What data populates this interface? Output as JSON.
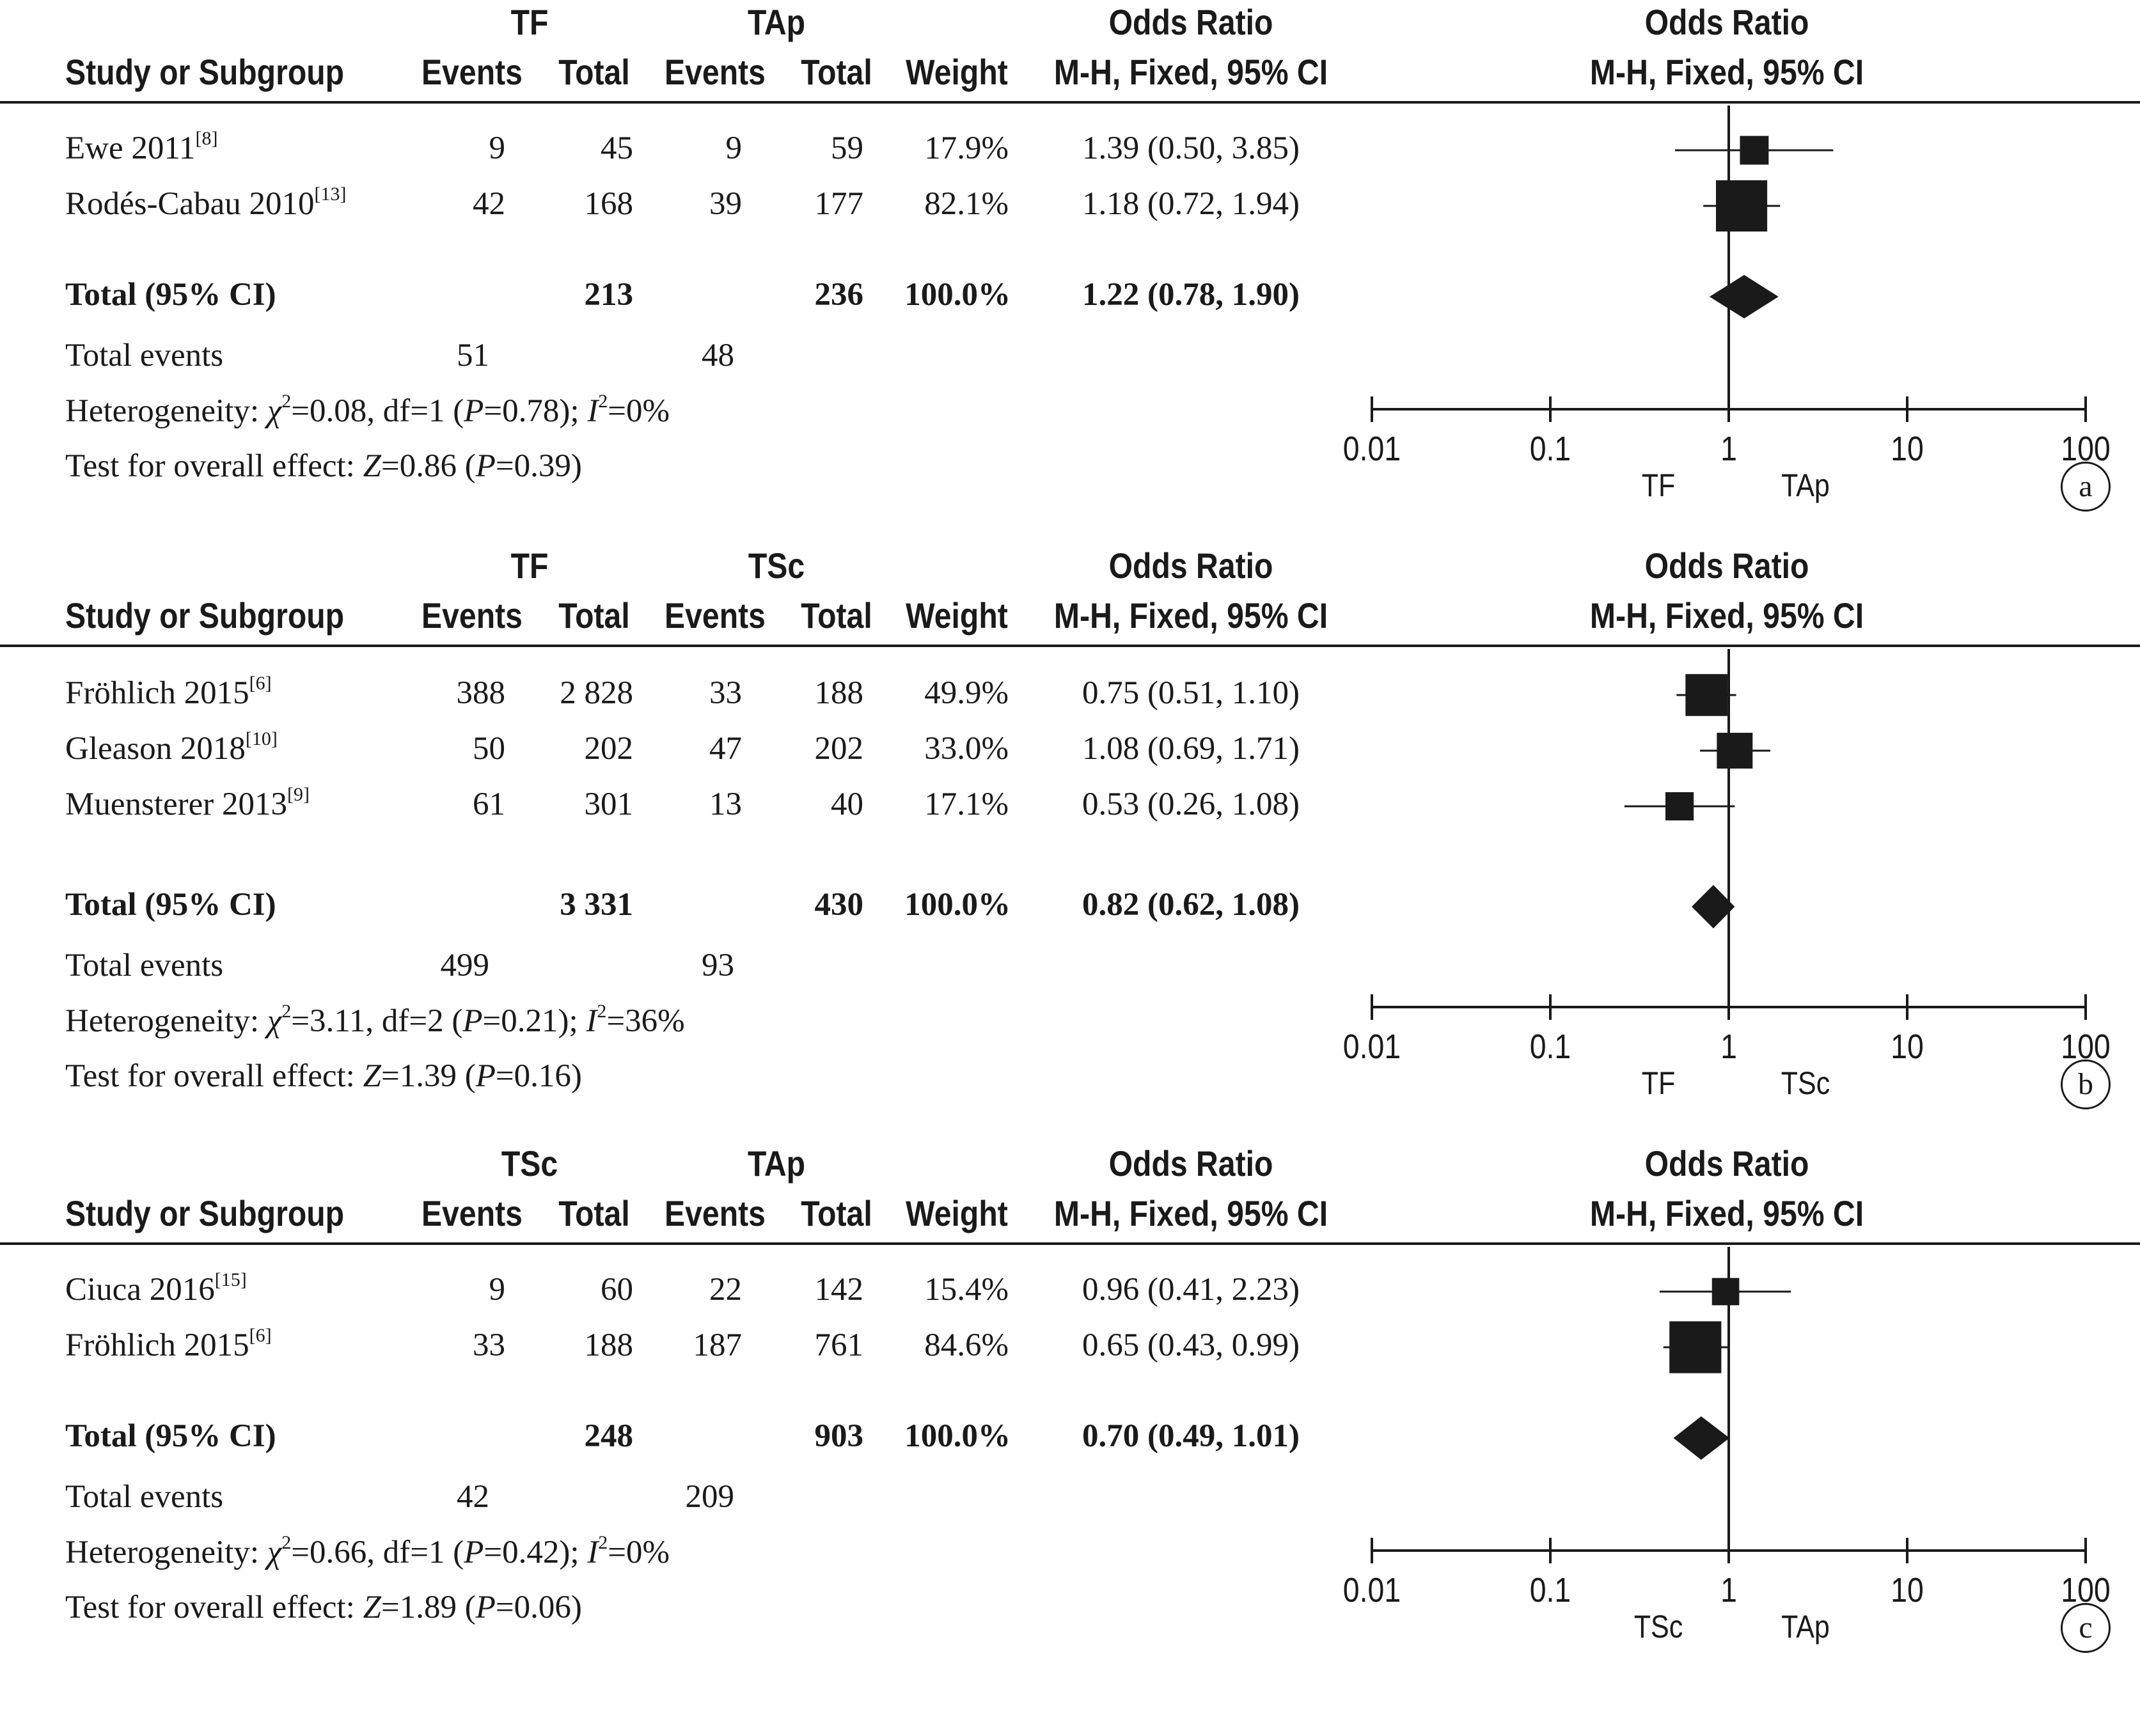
{
  "chart_data": [
    {
      "type": "forest",
      "columns": {
        "study": "Study or Subgroup",
        "group1": "TF",
        "group2": "TAp",
        "events": "Events",
        "total": "Total",
        "weight": "Weight",
        "or": "Odds Ratio",
        "method": "M-H, Fixed, 95% CI"
      },
      "studies": [
        {
          "name": "Ewe 2011",
          "ref": "[8]",
          "e1": "9",
          "t1": "45",
          "e2": "9",
          "t2": "59",
          "weight": "17.9%",
          "ci_text": "1.39 (0.50, 3.85)",
          "or": 1.39,
          "lo": 0.5,
          "hi": 3.85,
          "w": 17.9
        },
        {
          "name": "Rodés-Cabau 2010",
          "ref": "[13]",
          "e1": "42",
          "t1": "168",
          "e2": "39",
          "t2": "177",
          "weight": "82.1%",
          "ci_text": "1.18 (0.72, 1.94)",
          "or": 1.18,
          "lo": 0.72,
          "hi": 1.94,
          "w": 82.1
        }
      ],
      "total": {
        "label": "Total (95% CI)",
        "t1": "213",
        "t2": "236",
        "weight": "100.0%",
        "ci_text": "1.22 (0.78, 1.90)",
        "or": 1.22,
        "lo": 0.78,
        "hi": 1.9
      },
      "events": {
        "label": "Total events",
        "e1": "51",
        "e2": "48"
      },
      "heterogeneity": {
        "prefix": "Heterogeneity: ",
        "chi": "χ",
        "mid": "=0.08, df=1 (",
        "p": "P",
        "pval": "=0.78); ",
        "i": "I",
        "ival": "=0%"
      },
      "overall": {
        "prefix": "Test for overall effect: ",
        "z": "Z",
        "zval": "=0.86 (",
        "p": "P",
        "pval": "=0.39)"
      },
      "axis": {
        "ticks": [
          "0.01",
          "0.1",
          "1",
          "10",
          "100"
        ],
        "values": [
          0.01,
          0.1,
          1,
          10,
          100
        ],
        "scale": "log",
        "left_label": "TF",
        "right_label": "TAp"
      },
      "panel_label": "a"
    },
    {
      "type": "forest",
      "columns": {
        "study": "Study or Subgroup",
        "group1": "TF",
        "group2": "TSc",
        "events": "Events",
        "total": "Total",
        "weight": "Weight",
        "or": "Odds Ratio",
        "method": "M-H, Fixed, 95% CI"
      },
      "studies": [
        {
          "name": "Fröhlich 2015",
          "ref": "[6]",
          "e1": "388",
          "t1": "2 828",
          "e2": "33",
          "t2": "188",
          "weight": "49.9%",
          "ci_text": "0.75 (0.51, 1.10)",
          "or": 0.75,
          "lo": 0.51,
          "hi": 1.1,
          "w": 49.9
        },
        {
          "name": "Gleason 2018",
          "ref": "[10]",
          "e1": "50",
          "t1": "202",
          "e2": "47",
          "t2": "202",
          "weight": "33.0%",
          "ci_text": "1.08 (0.69, 1.71)",
          "or": 1.08,
          "lo": 0.69,
          "hi": 1.71,
          "w": 33.0
        },
        {
          "name": "Muensterer 2013",
          "ref": "[9]",
          "e1": "61",
          "t1": "301",
          "e2": "13",
          "t2": "40",
          "weight": "17.1%",
          "ci_text": "0.53 (0.26, 1.08)",
          "or": 0.53,
          "lo": 0.26,
          "hi": 1.08,
          "w": 17.1
        }
      ],
      "total": {
        "label": "Total (95% CI)",
        "t1": "3 331",
        "t2": "430",
        "weight": "100.0%",
        "ci_text": "0.82 (0.62, 1.08)",
        "or": 0.82,
        "lo": 0.62,
        "hi": 1.08
      },
      "events": {
        "label": "Total events",
        "e1": "499",
        "e2": "93"
      },
      "heterogeneity": {
        "prefix": "Heterogeneity: ",
        "chi": "χ",
        "mid": "=3.11, df=2 (",
        "p": "P",
        "pval": "=0.21); ",
        "i": "I",
        "ival": "=36%"
      },
      "overall": {
        "prefix": "Test for overall effect: ",
        "z": "Z",
        "zval": "=1.39 (",
        "p": "P",
        "pval": "=0.16)"
      },
      "axis": {
        "ticks": [
          "0.01",
          "0.1",
          "1",
          "10",
          "100"
        ],
        "values": [
          0.01,
          0.1,
          1,
          10,
          100
        ],
        "scale": "log",
        "left_label": "TF",
        "right_label": "TSc"
      },
      "panel_label": "b"
    },
    {
      "type": "forest",
      "columns": {
        "study": "Study or Subgroup",
        "group1": "TSc",
        "group2": "TAp",
        "events": "Events",
        "total": "Total",
        "weight": "Weight",
        "or": "Odds Ratio",
        "method": "M-H, Fixed, 95% CI"
      },
      "studies": [
        {
          "name": "Ciuca 2016",
          "ref": "[15]",
          "e1": "9",
          "t1": "60",
          "e2": "22",
          "t2": "142",
          "weight": "15.4%",
          "ci_text": "0.96 (0.41, 2.23)",
          "or": 0.96,
          "lo": 0.41,
          "hi": 2.23,
          "w": 15.4
        },
        {
          "name": "Fröhlich 2015",
          "ref": "[6]",
          "e1": "33",
          "t1": "188",
          "e2": "187",
          "t2": "761",
          "weight": "84.6%",
          "ci_text": "0.65 (0.43, 0.99)",
          "or": 0.65,
          "lo": 0.43,
          "hi": 0.99,
          "w": 84.6
        }
      ],
      "total": {
        "label": "Total (95% CI)",
        "t1": "248",
        "t2": "903",
        "weight": "100.0%",
        "ci_text": "0.70 (0.49, 1.01)",
        "or": 0.7,
        "lo": 0.49,
        "hi": 1.01
      },
      "events": {
        "label": "Total events",
        "e1": "42",
        "e2": "209"
      },
      "heterogeneity": {
        "prefix": "Heterogeneity: ",
        "chi": "χ",
        "mid": "=0.66, df=1 (",
        "p": "P",
        "pval": "=0.42); ",
        "i": "I",
        "ival": "=0%"
      },
      "overall": {
        "prefix": "Test for overall effect: ",
        "z": "Z",
        "zval": "=1.89 (",
        "p": "P",
        "pval": "=0.06)"
      },
      "axis": {
        "ticks": [
          "0.01",
          "0.1",
          "1",
          "10",
          "100"
        ],
        "values": [
          0.01,
          0.1,
          1,
          10,
          100
        ],
        "scale": "log",
        "left_label": "TSc",
        "right_label": "TAp"
      },
      "panel_label": "c"
    }
  ]
}
